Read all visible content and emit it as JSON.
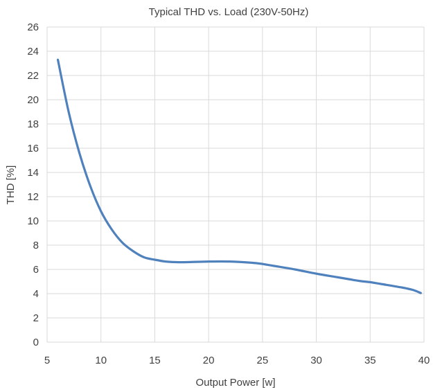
{
  "chart_data": {
    "type": "line",
    "title": "Typical THD vs. Load (230V-50Hz)",
    "xlabel": "Output Power [w]",
    "ylabel": "THD [%]",
    "xlim": [
      5,
      40
    ],
    "ylim": [
      0,
      26
    ],
    "xticks": [
      5,
      10,
      15,
      20,
      25,
      30,
      35,
      40
    ],
    "yticks": [
      0,
      2,
      4,
      6,
      8,
      10,
      12,
      14,
      16,
      18,
      20,
      22,
      24,
      26
    ],
    "grid": true,
    "legend": "none",
    "series": [
      {
        "color": "#4F81BD",
        "x": [
          6,
          7,
          8,
          9,
          10,
          11,
          12,
          13,
          14,
          15,
          16,
          17,
          18,
          20,
          22,
          24,
          25,
          26,
          28,
          30,
          32,
          34,
          35,
          36,
          38,
          39,
          39.7
        ],
        "y": [
          23.3,
          19.0,
          15.6,
          12.9,
          10.8,
          9.3,
          8.2,
          7.5,
          7.0,
          6.8,
          6.65,
          6.6,
          6.6,
          6.65,
          6.65,
          6.55,
          6.45,
          6.3,
          6.0,
          5.65,
          5.35,
          5.05,
          4.95,
          4.8,
          4.5,
          4.3,
          4.05
        ]
      }
    ]
  }
}
